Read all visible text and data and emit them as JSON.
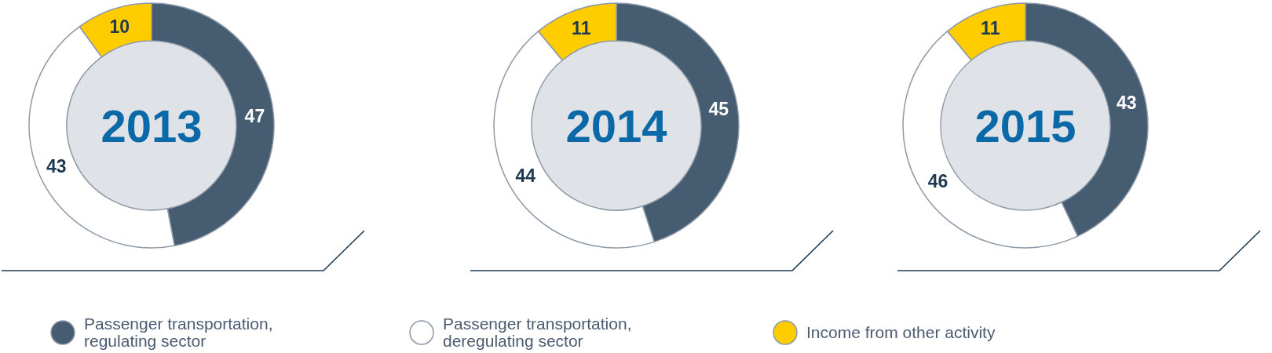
{
  "chart_data": {
    "type": "donut",
    "categories": [
      "Passenger transportation, regulating sector",
      "Passenger transportation, deregulating sector",
      "Income from other activity"
    ],
    "colors": [
      "#465c70",
      "#ffffff",
      "#ffcc00"
    ],
    "series": [
      {
        "name": "2013",
        "values": [
          47,
          43,
          10
        ]
      },
      {
        "name": "2014",
        "values": [
          45,
          44,
          11
        ]
      },
      {
        "name": "2015",
        "values": [
          43,
          46,
          11
        ]
      }
    ],
    "data_labels": true,
    "legend": "bottom"
  }
}
